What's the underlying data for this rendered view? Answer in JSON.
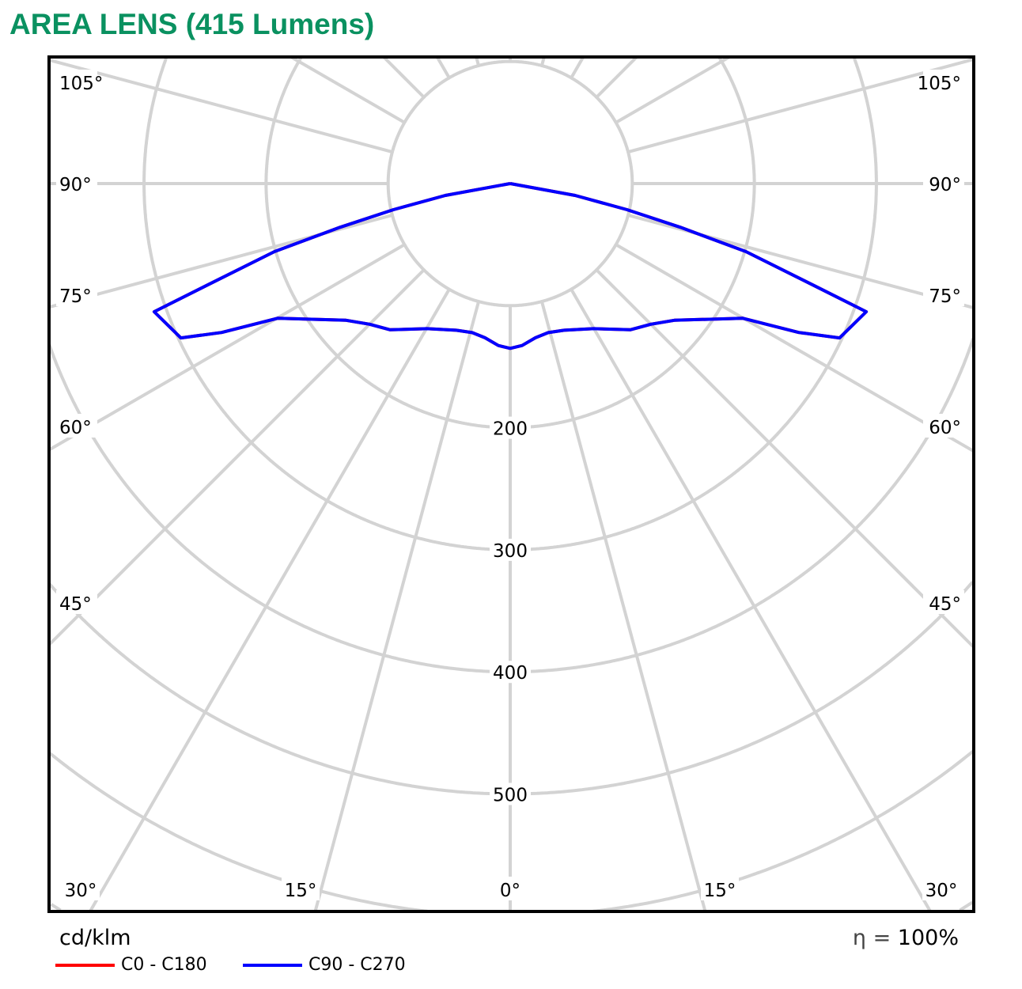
{
  "title": "AREA LENS (415 Lumens)",
  "unit": "cd/klm",
  "efficiency": {
    "symbol": "η =",
    "value": "100%"
  },
  "chart_data": {
    "type": "polar",
    "title": "AREA LENS (415 Lumens)",
    "unit": "cd/klm",
    "radial_ticks": [
      100,
      200,
      300,
      400,
      500
    ],
    "radial_tick_labels": [
      "200",
      "300",
      "400",
      "500"
    ],
    "angle_labels": [
      "105°",
      "90°",
      "75°",
      "60°",
      "45°",
      "30°",
      "15°",
      "0°"
    ],
    "angle_step": 15,
    "grid": true,
    "series": [
      {
        "name": "C0 - C180",
        "color": "#ff0000",
        "points": [
          [
            90,
            0
          ],
          [
            79.6,
            54
          ],
          [
            77.4,
            98
          ],
          [
            75.6,
            144
          ],
          [
            73.9,
            201
          ],
          [
            71.5,
            261
          ],
          [
            70.2,
            310
          ],
          [
            64.9,
            298
          ],
          [
            62.7,
            266
          ],
          [
            59.9,
            220
          ],
          [
            50.2,
            175
          ],
          [
            45,
            163
          ],
          [
            39.4,
            155
          ],
          [
            29.8,
            137
          ],
          [
            20.2,
            128
          ],
          [
            14.3,
            126
          ],
          [
            9.3,
            128
          ],
          [
            4.2,
            133
          ],
          [
            0,
            135
          ]
        ]
      },
      {
        "name": "C90 - C270",
        "color": "#0000ff",
        "points": [
          [
            90,
            0
          ],
          [
            79.6,
            54
          ],
          [
            77.4,
            98
          ],
          [
            75.6,
            144
          ],
          [
            73.9,
            201
          ],
          [
            71.5,
            261
          ],
          [
            70.2,
            310
          ],
          [
            64.9,
            298
          ],
          [
            62.7,
            266
          ],
          [
            59.9,
            220
          ],
          [
            50.2,
            175
          ],
          [
            45,
            163
          ],
          [
            39.4,
            155
          ],
          [
            29.8,
            137
          ],
          [
            20.2,
            128
          ],
          [
            14.3,
            126
          ],
          [
            9.3,
            128
          ],
          [
            4.2,
            133
          ],
          [
            0,
            135
          ]
        ]
      }
    ]
  }
}
